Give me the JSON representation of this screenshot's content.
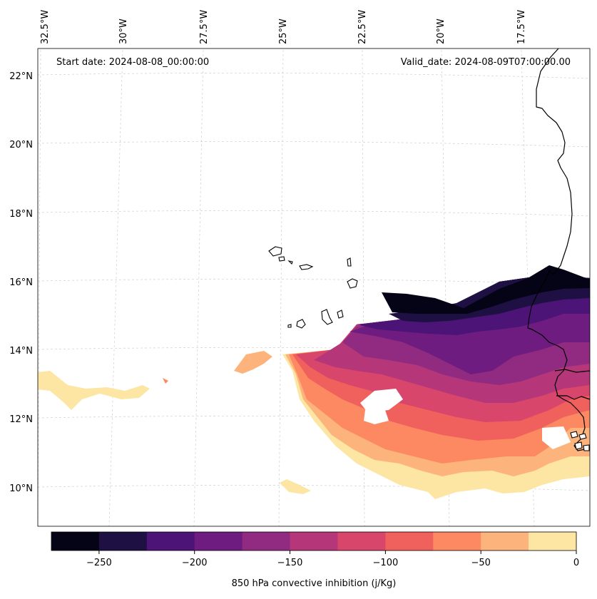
{
  "annotations": {
    "start_date": "Start date: 2024-08-08_00:00:00",
    "valid_date": "Valid_date: 2024-08-09T07:00:00.00"
  },
  "map": {
    "lon_labels": [
      "32.5°W",
      "30°W",
      "27.5°W",
      "25°W",
      "22.5°W",
      "20°W",
      "17.5°W"
    ],
    "lat_labels": [
      "22°N",
      "20°N",
      "18°N",
      "16°N",
      "14°N",
      "12°N",
      "10°N"
    ]
  },
  "colorbar": {
    "label": "850 hPa convective inhibition (j/Kg)",
    "ticks": [
      "−250",
      "−200",
      "−150",
      "−100",
      "−50",
      "0"
    ],
    "colors": [
      "#050416",
      "#1f1044",
      "#4d1478",
      "#6e1c80",
      "#902b81",
      "#b53779",
      "#d8466c",
      "#f0605d",
      "#fc8961",
      "#fdb47c",
      "#fde6a3"
    ]
  }
}
